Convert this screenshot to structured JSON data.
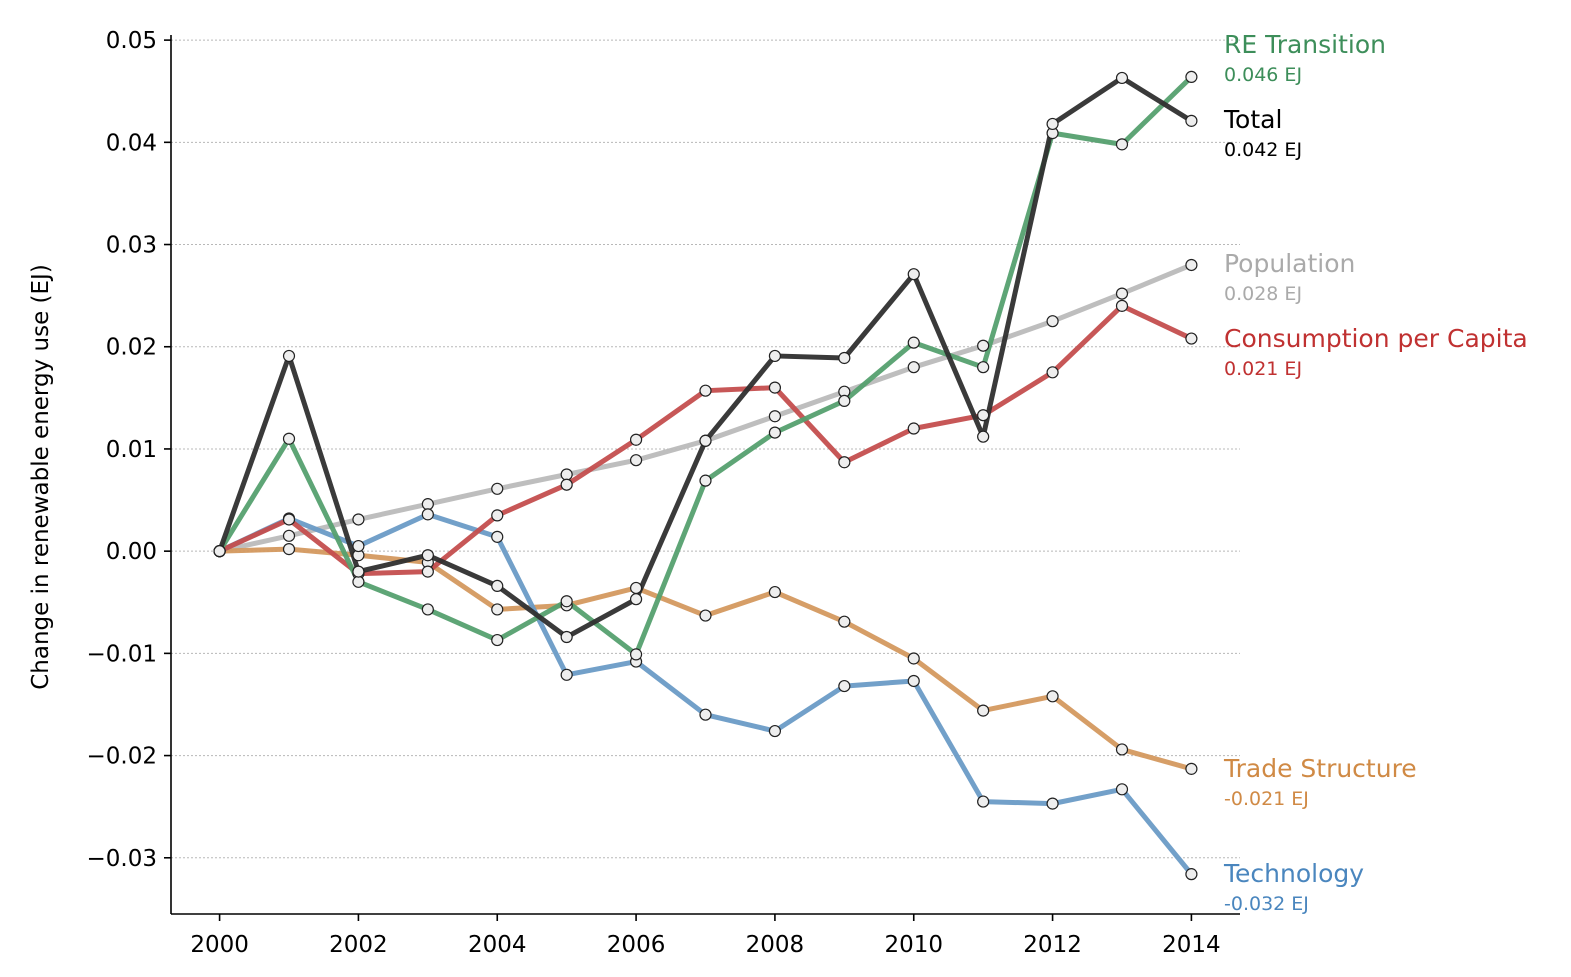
{
  "chart_data": {
    "type": "line",
    "title": "",
    "xlabel": "",
    "ylabel": "Change in renewable energy use (EJ)",
    "xlim": [
      1999.3,
      2014.7
    ],
    "ylim": [
      -0.0355,
      0.0505
    ],
    "grid": "horizontal dotted",
    "x": [
      2000,
      2001,
      2002,
      2003,
      2004,
      2005,
      2006,
      2007,
      2008,
      2009,
      2010,
      2011,
      2012,
      2013,
      2014
    ],
    "x_ticks": [
      2000,
      2002,
      2004,
      2006,
      2008,
      2010,
      2012,
      2014
    ],
    "x_tick_labels": [
      "2000",
      "2002",
      "2004",
      "2006",
      "2008",
      "2010",
      "2012",
      "2014"
    ],
    "y_ticks": [
      -0.03,
      -0.02,
      -0.01,
      0.0,
      0.01,
      0.02,
      0.03,
      0.04,
      0.05
    ],
    "y_tick_labels": [
      "−0.03",
      "−0.02",
      "−0.01",
      "0.00",
      "0.01",
      "0.02",
      "0.03",
      "0.04",
      "0.05"
    ],
    "series": [
      {
        "name": "Population",
        "end_label": "0.028 EJ",
        "color": "#bbbbbb",
        "label_color": "#aaaaaa",
        "values": [
          0.0,
          0.0015,
          0.0031,
          0.0046,
          0.0061,
          0.0075,
          0.0089,
          0.0108,
          0.0132,
          0.0156,
          0.018,
          0.0201,
          0.0225,
          0.0252,
          0.028
        ]
      },
      {
        "name": "Trade Structure",
        "end_label": "-0.021 EJ",
        "color": "#d4995f",
        "label_color": "#d08a45",
        "values": [
          0.0,
          0.0002,
          -0.0004,
          -0.0011,
          -0.0057,
          -0.0053,
          -0.0036,
          -0.0063,
          -0.004,
          -0.0069,
          -0.0105,
          -0.0156,
          -0.0142,
          -0.0194,
          -0.0213
        ]
      },
      {
        "name": "Technology",
        "end_label": "-0.032 EJ",
        "color": "#6a9bc6",
        "label_color": "#4a86be",
        "values": [
          0.0,
          0.0032,
          0.0005,
          0.0036,
          0.0014,
          -0.0121,
          -0.0108,
          -0.016,
          -0.0176,
          -0.0132,
          -0.0127,
          -0.0245,
          -0.0247,
          -0.0233,
          -0.0316
        ]
      },
      {
        "name": "Consumption per Capita",
        "end_label": "0.021 EJ",
        "color": "#c44e4e",
        "label_color": "#c03131",
        "values": [
          0.0,
          0.0031,
          -0.0022,
          -0.002,
          0.0035,
          0.0065,
          0.0109,
          0.0157,
          0.016,
          0.0087,
          0.012,
          0.0133,
          0.0175,
          0.024,
          0.0208
        ]
      },
      {
        "name": "RE Transition",
        "end_label": "0.046 EJ",
        "color": "#55a06f",
        "label_color": "#3d8e5a",
        "values": [
          0.0,
          0.011,
          -0.003,
          -0.0057,
          -0.0087,
          -0.0049,
          -0.0101,
          0.0069,
          0.0116,
          0.0147,
          0.0204,
          0.018,
          0.0409,
          0.0398,
          0.0464
        ]
      },
      {
        "name": "Total",
        "end_label": "0.042 EJ",
        "color": "#2f2f2f",
        "label_color": "#000000",
        "values": [
          0.0,
          0.0191,
          -0.002,
          -0.0004,
          -0.0034,
          -0.0084,
          -0.0047,
          0.0108,
          0.0191,
          0.0189,
          0.0271,
          0.0112,
          0.0418,
          0.0463,
          0.0421
        ]
      }
    ],
    "legend_placement": "inline right of line ends"
  }
}
